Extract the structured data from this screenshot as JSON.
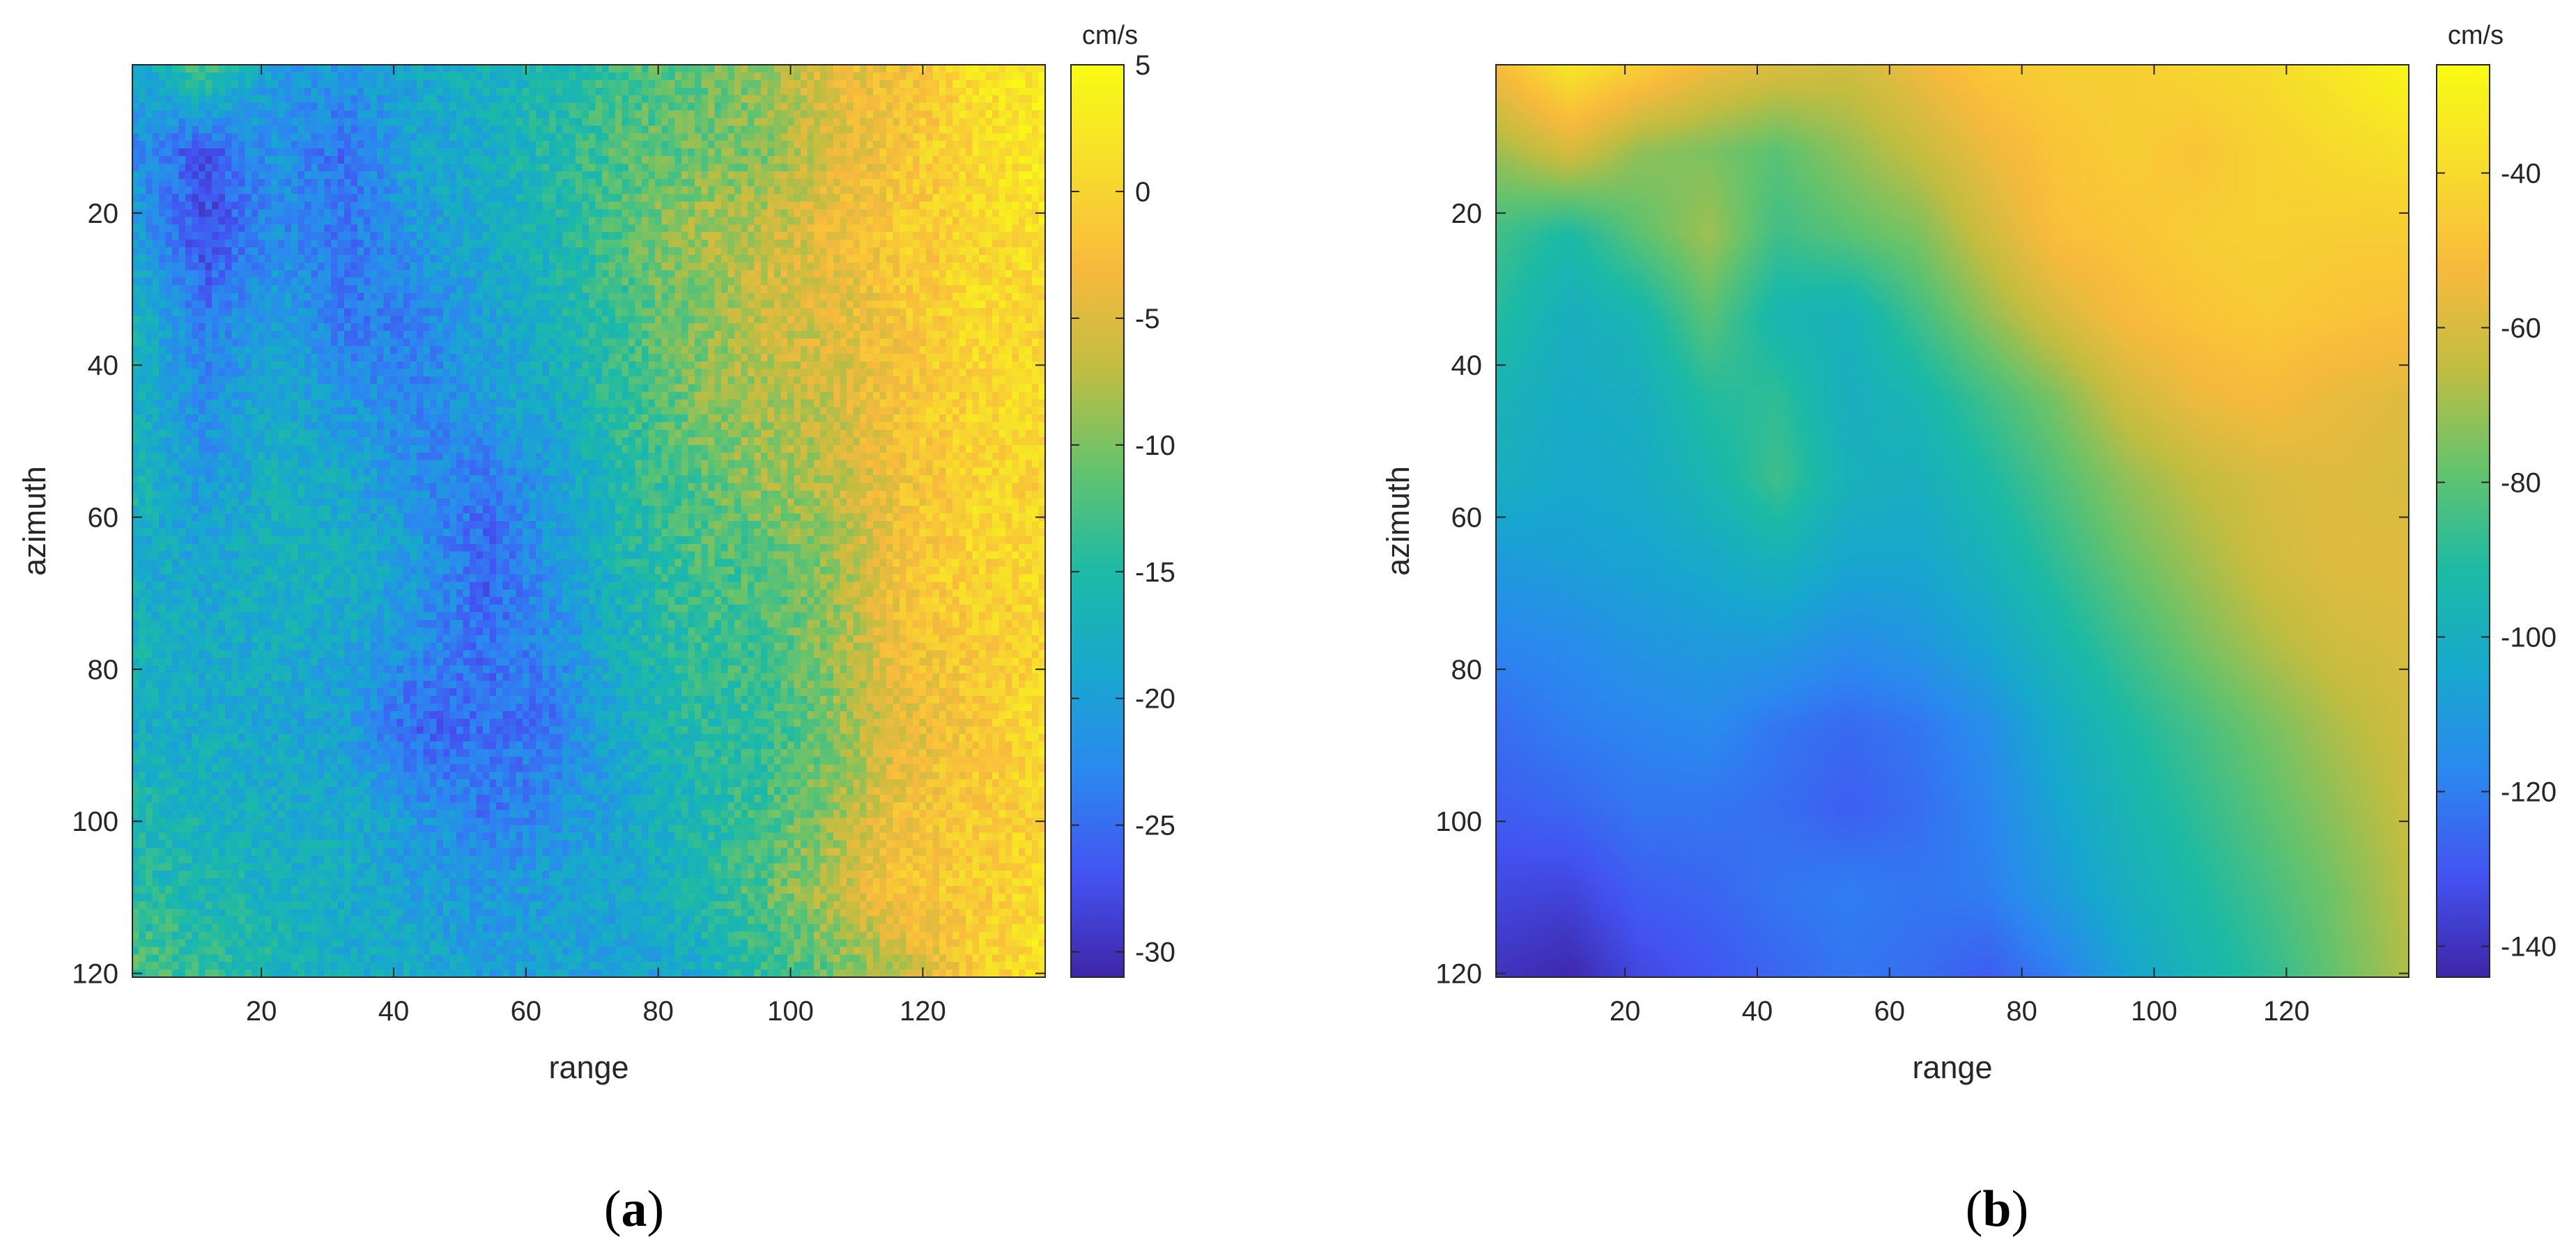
{
  "colors": {
    "colormap": [
      "#3e26a8",
      "#4353f1",
      "#2c87f0",
      "#17a8ce",
      "#1cbaa6",
      "#64c36d",
      "#c1bd41",
      "#f8ba3d",
      "#f7dd2c",
      "#f9fb15"
    ]
  },
  "chart_data": [
    {
      "type": "heatmap",
      "caption_letter": "a",
      "xlabel": "range",
      "ylabel": "azimuth",
      "xlim": [
        0.5,
        138.5
      ],
      "ylim": [
        0.5,
        120.5
      ],
      "y_reversed": true,
      "xticks": [
        20,
        40,
        60,
        80,
        100,
        120
      ],
      "yticks": [
        20,
        40,
        60,
        80,
        100,
        120
      ],
      "colorbar": {
        "unit": "cm/s",
        "clim": [
          -31,
          5
        ],
        "ticks": [
          5,
          0,
          -5,
          -10,
          -15,
          -20,
          -25,
          -30
        ]
      },
      "field_rows": [
        [
          -19,
          -12,
          -20,
          -21,
          -19,
          -17,
          -16,
          -13,
          -11,
          -9,
          -4,
          -3,
          1,
          3
        ],
        [
          -22,
          -27,
          -21,
          -25,
          -19,
          -18,
          -15,
          -12,
          -11,
          -10,
          -5,
          -2,
          1,
          2
        ],
        [
          -20,
          -28,
          -22,
          -24,
          -21,
          -18,
          -16,
          -12,
          -8,
          -7,
          -4,
          -1,
          0,
          2
        ],
        [
          -17,
          -24,
          -20,
          -24,
          -23,
          -20,
          -17,
          -13,
          -10,
          -6,
          -5,
          -2,
          1,
          0
        ],
        [
          -17,
          -22,
          -18,
          -21,
          -23,
          -20,
          -18,
          -14,
          -10,
          -8,
          -6,
          -2,
          0,
          1
        ],
        [
          -16,
          -21,
          -17,
          -19,
          -22,
          -24,
          -20,
          -15,
          -12,
          -9,
          -7,
          -3,
          0,
          0
        ],
        [
          -18,
          -19,
          -17,
          -17,
          -20,
          -26,
          -21,
          -16,
          -13,
          -12,
          -9,
          -2,
          0,
          1
        ],
        [
          -17,
          -18,
          -18,
          -19,
          -22,
          -25,
          -22,
          -17,
          -14,
          -13,
          -9,
          -3,
          -1,
          0
        ],
        [
          -18,
          -18,
          -19,
          -20,
          -26,
          -25,
          -24,
          -18,
          -15,
          -14,
          -10,
          -5,
          -2,
          1
        ],
        [
          -16,
          -17,
          -18,
          -18,
          -21,
          -24,
          -22,
          -19,
          -16,
          -13,
          -9,
          -3,
          -1,
          0
        ],
        [
          -15,
          -16,
          -17,
          -18,
          -20,
          -21,
          -20,
          -19,
          -16,
          -12,
          -7,
          -2,
          -1,
          1
        ],
        [
          -12,
          -14,
          -16,
          -18,
          -18,
          -20,
          -19,
          -20,
          -18,
          -14,
          -11,
          -7,
          -1,
          2
        ]
      ]
    },
    {
      "type": "heatmap",
      "caption_letter": "b",
      "xlabel": "range",
      "ylabel": "azimuth",
      "xlim": [
        0.5,
        138.5
      ],
      "ylim": [
        0.5,
        120.5
      ],
      "y_reversed": true,
      "xticks": [
        20,
        40,
        60,
        80,
        100,
        120
      ],
      "yticks": [
        20,
        40,
        60,
        80,
        100,
        120
      ],
      "colorbar": {
        "unit": "cm/s",
        "clim": [
          -144,
          -26
        ],
        "ticks": [
          -40,
          -60,
          -80,
          -100,
          -120,
          -140
        ]
      },
      "field_rows": [
        [
          -52,
          -36,
          -45,
          -55,
          -60,
          -62,
          -55,
          -47,
          -45,
          -45,
          -42,
          -40,
          -35,
          -28
        ],
        [
          -70,
          -60,
          -72,
          -75,
          -80,
          -72,
          -64,
          -55,
          -48,
          -45,
          -48,
          -43,
          -40,
          -38
        ],
        [
          -85,
          -92,
          -80,
          -70,
          -85,
          -80,
          -75,
          -62,
          -50,
          -48,
          -45,
          -44,
          -45,
          -45
        ],
        [
          -90,
          -100,
          -95,
          -80,
          -95,
          -98,
          -85,
          -72,
          -60,
          -52,
          -48,
          -46,
          -48,
          -50
        ],
        [
          -97,
          -102,
          -100,
          -90,
          -88,
          -100,
          -95,
          -85,
          -75,
          -62,
          -55,
          -52,
          -56,
          -58
        ],
        [
          -100,
          -104,
          -102,
          -95,
          -85,
          -98,
          -100,
          -92,
          -82,
          -72,
          -65,
          -60,
          -58,
          -60
        ],
        [
          -110,
          -108,
          -106,
          -103,
          -98,
          -105,
          -105,
          -98,
          -88,
          -78,
          -70,
          -62,
          -58,
          -58
        ],
        [
          -118,
          -116,
          -112,
          -110,
          -110,
          -115,
          -112,
          -105,
          -95,
          -85,
          -76,
          -68,
          -62,
          -60
        ],
        [
          -124,
          -120,
          -118,
          -116,
          -122,
          -125,
          -122,
          -115,
          -102,
          -92,
          -84,
          -76,
          -68,
          -62
        ],
        [
          -128,
          -126,
          -122,
          -122,
          -124,
          -128,
          -124,
          -118,
          -106,
          -96,
          -88,
          -80,
          -72,
          -64
        ],
        [
          -134,
          -135,
          -128,
          -126,
          -122,
          -120,
          -122,
          -120,
          -110,
          -100,
          -92,
          -84,
          -76,
          -66
        ],
        [
          -140,
          -143,
          -134,
          -130,
          -126,
          -122,
          -124,
          -128,
          -120,
          -106,
          -96,
          -88,
          -78,
          -68
        ]
      ]
    }
  ]
}
